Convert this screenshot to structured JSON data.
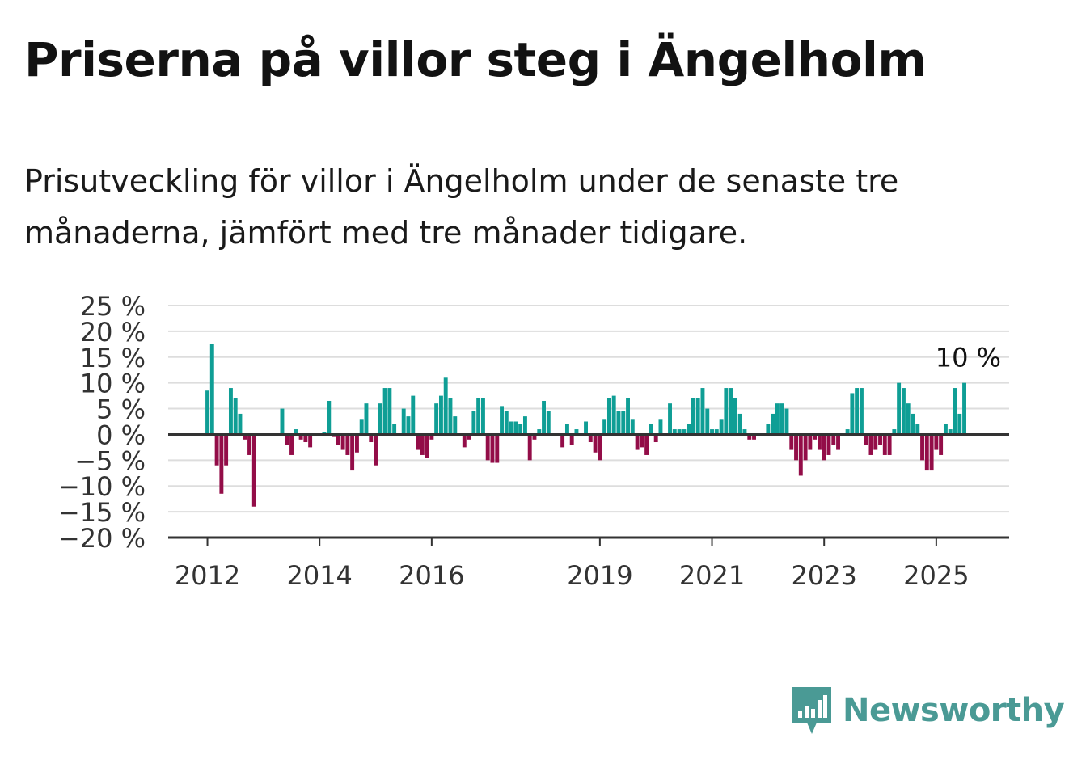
{
  "title": "Priserna på villor steg i Ängelholm",
  "subtitle": "Prisutveckling för villor i Ängelholm under de senaste tre månaderna, jämfört med tre månader tidigare.",
  "brand": {
    "name": "Newsworthy",
    "color": "#4a9a95"
  },
  "colors": {
    "positive": "#0f9e95",
    "negative": "#930d48",
    "gridline": "#dddddd",
    "axis": "#333333"
  },
  "chart_data": {
    "type": "bar",
    "title": "Priserna på villor steg i Ängelholm",
    "xlabel": "",
    "ylabel": "",
    "ylim": [
      -20,
      25
    ],
    "yticks": [
      25,
      20,
      15,
      10,
      5,
      0,
      -5,
      -10,
      -15,
      -20
    ],
    "ytick_labels": [
      "25 %",
      "20 %",
      "15 %",
      "10 %",
      "5 %",
      "0 %",
      "−5 %",
      "−10 %",
      "−15 %",
      "−20 %"
    ],
    "xlim": [
      2011.3,
      2026.3
    ],
    "xticks": [
      2012,
      2014,
      2016,
      2019,
      2021,
      2023,
      2025
    ],
    "xtick_labels": [
      "2012",
      "2014",
      "2016",
      "2019",
      "2021",
      "2023",
      "2025"
    ],
    "grid": true,
    "annotation": {
      "label": "10 %",
      "x": 2025.5,
      "y": 10
    },
    "series": [
      {
        "x": [
          2012.0,
          2012.083,
          2012.167,
          2012.25,
          2012.333,
          2012.417,
          2012.5,
          2012.583,
          2012.667,
          2012.75,
          2012.833,
          2012.917,
          2013.0,
          2013.083,
          2013.167,
          2013.25,
          2013.333,
          2013.417,
          2013.5,
          2013.583,
          2013.667,
          2013.75,
          2013.833,
          2013.917,
          2014.0,
          2014.083,
          2014.167,
          2014.25,
          2014.333,
          2014.417,
          2014.5,
          2014.583,
          2014.667,
          2014.75,
          2014.833,
          2014.917,
          2015.0,
          2015.083,
          2015.167,
          2015.25,
          2015.333,
          2015.417,
          2015.5,
          2015.583,
          2015.667,
          2015.75,
          2015.833,
          2015.917,
          2016.0,
          2016.083,
          2016.167,
          2016.25,
          2016.333,
          2016.417,
          2016.5,
          2016.583,
          2016.667,
          2016.75,
          2016.833,
          2016.917,
          2017.0,
          2017.083,
          2017.167,
          2017.25,
          2017.333,
          2017.417,
          2017.5,
          2017.583,
          2017.667,
          2017.75,
          2017.833,
          2017.917,
          2018.0,
          2018.083,
          2018.167,
          2018.25,
          2018.333,
          2018.417,
          2018.5,
          2018.583,
          2018.667,
          2018.75,
          2018.833,
          2018.917,
          2019.0,
          2019.083,
          2019.167,
          2019.25,
          2019.333,
          2019.417,
          2019.5,
          2019.583,
          2019.667,
          2019.75,
          2019.833,
          2019.917,
          2020.0,
          2020.083,
          2020.167,
          2020.25,
          2020.333,
          2020.417,
          2020.5,
          2020.583,
          2020.667,
          2020.75,
          2020.833,
          2020.917,
          2021.0,
          2021.083,
          2021.167,
          2021.25,
          2021.333,
          2021.417,
          2021.5,
          2021.583,
          2021.667,
          2021.75,
          2021.833,
          2021.917,
          2022.0,
          2022.083,
          2022.167,
          2022.25,
          2022.333,
          2022.417,
          2022.5,
          2022.583,
          2022.667,
          2022.75,
          2022.833,
          2022.917,
          2023.0,
          2023.083,
          2023.167,
          2023.25,
          2023.333,
          2023.417,
          2023.5,
          2023.583,
          2023.667,
          2023.75,
          2023.833,
          2023.917,
          2024.0,
          2024.083,
          2024.167,
          2024.25,
          2024.333,
          2024.417,
          2024.5,
          2024.583,
          2024.667,
          2024.75,
          2024.833,
          2024.917,
          2025.0,
          2025.083,
          2025.167,
          2025.25,
          2025.333,
          2025.417,
          2025.5
        ],
        "values": [
          8.5,
          17.5,
          -6,
          -11.5,
          -6,
          9,
          7,
          4,
          -1,
          -4,
          -14,
          0,
          0,
          0,
          0,
          0,
          5,
          -2,
          -4,
          1,
          -1,
          -1.5,
          -2.5,
          0,
          0,
          0.5,
          6.5,
          -0.5,
          -2,
          -3,
          -4,
          -7,
          -3.5,
          3,
          6,
          -1.5,
          -6,
          6,
          9,
          9,
          2,
          0,
          5,
          3.5,
          7.5,
          -3,
          -4,
          -4.5,
          -1,
          6,
          7.5,
          11,
          7,
          3.5,
          0,
          -2.5,
          -1,
          4.5,
          7,
          7,
          -5,
          -5.5,
          -5.5,
          5.5,
          4.5,
          2.5,
          2.5,
          2,
          3.5,
          -5,
          -1,
          1,
          6.5,
          4.5,
          0,
          0,
          -2.5,
          2,
          -2,
          1,
          0,
          2.5,
          -1.5,
          -3.5,
          -5,
          3,
          7,
          7.5,
          4.5,
          4.5,
          7,
          3,
          -3,
          -2.5,
          -4,
          2,
          -1.5,
          3,
          0,
          6,
          1,
          1,
          1,
          2,
          7,
          7,
          9,
          5,
          1,
          1,
          3,
          9,
          9,
          7,
          4,
          1,
          -1,
          -1,
          0,
          0,
          2,
          4,
          6,
          6,
          5,
          -3,
          -5,
          -8,
          -5,
          -3,
          -1,
          -3,
          -5,
          -4,
          -2,
          -3,
          0,
          1,
          8,
          9,
          9,
          -2,
          -4,
          -3,
          -2,
          -4,
          -4,
          1,
          10,
          9,
          6,
          4,
          2,
          -5,
          -7,
          -7,
          -3,
          -4,
          2,
          1,
          9,
          4,
          10
        ]
      }
    ]
  }
}
